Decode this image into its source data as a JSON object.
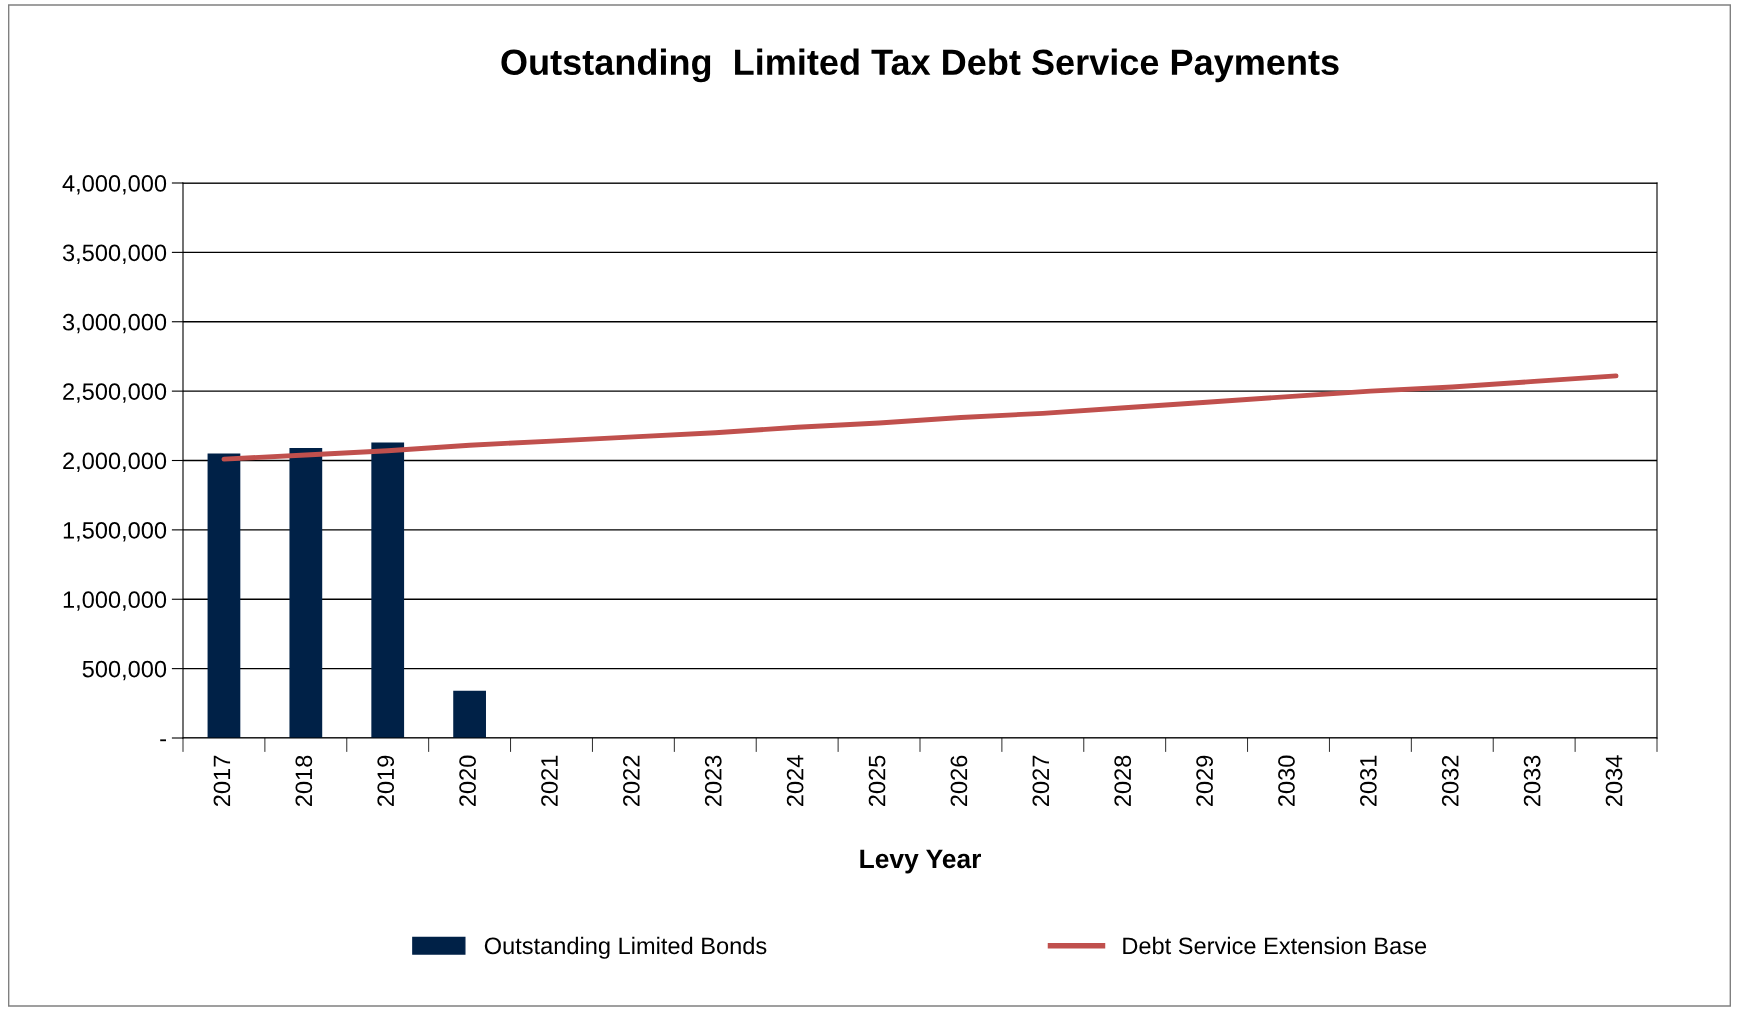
{
  "chart_data": {
    "type": "bar",
    "title": "Outstanding  Limited Tax Debt Service Payments",
    "xlabel": "Levy Year",
    "categories": [
      "2017",
      "2018",
      "2019",
      "2020",
      "2021",
      "2022",
      "2023",
      "2024",
      "2025",
      "2026",
      "2027",
      "2028",
      "2029",
      "2030",
      "2031",
      "2032",
      "2033",
      "2034"
    ],
    "series": [
      {
        "name": "Outstanding Limited Bonds",
        "color": "#002147",
        "values": [
          2050000,
          2090000,
          2130000,
          340000,
          null,
          null,
          null,
          null,
          null,
          null,
          null,
          null,
          null,
          null,
          null,
          null,
          null,
          null
        ]
      },
      {
        "name": "Debt Service Extension Base",
        "type": "line",
        "color": "#c0504d",
        "values": [
          2010000,
          2040000,
          2070000,
          2110000,
          2140000,
          2170000,
          2200000,
          2240000,
          2270000,
          2310000,
          2340000,
          2380000,
          2420000,
          2460000,
          2500000,
          2530000,
          2570000,
          2610000
        ]
      }
    ],
    "ylim": [
      0,
      4000000
    ],
    "yticks": [
      {
        "value": 0,
        "label": "-"
      },
      {
        "value": 500000,
        "label": "500,000"
      },
      {
        "value": 1000000,
        "label": "1,000,000"
      },
      {
        "value": 1500000,
        "label": "1,500,000"
      },
      {
        "value": 2000000,
        "label": "2,000,000"
      },
      {
        "value": 2500000,
        "label": "2,500,000"
      },
      {
        "value": 3000000,
        "label": "3,000,000"
      },
      {
        "value": 3500000,
        "label": "3,500,000"
      },
      {
        "value": 4000000,
        "label": "4,000,000"
      }
    ],
    "grid": "y",
    "legend": "bottom",
    "marker": "none",
    "line_style": "solid"
  }
}
